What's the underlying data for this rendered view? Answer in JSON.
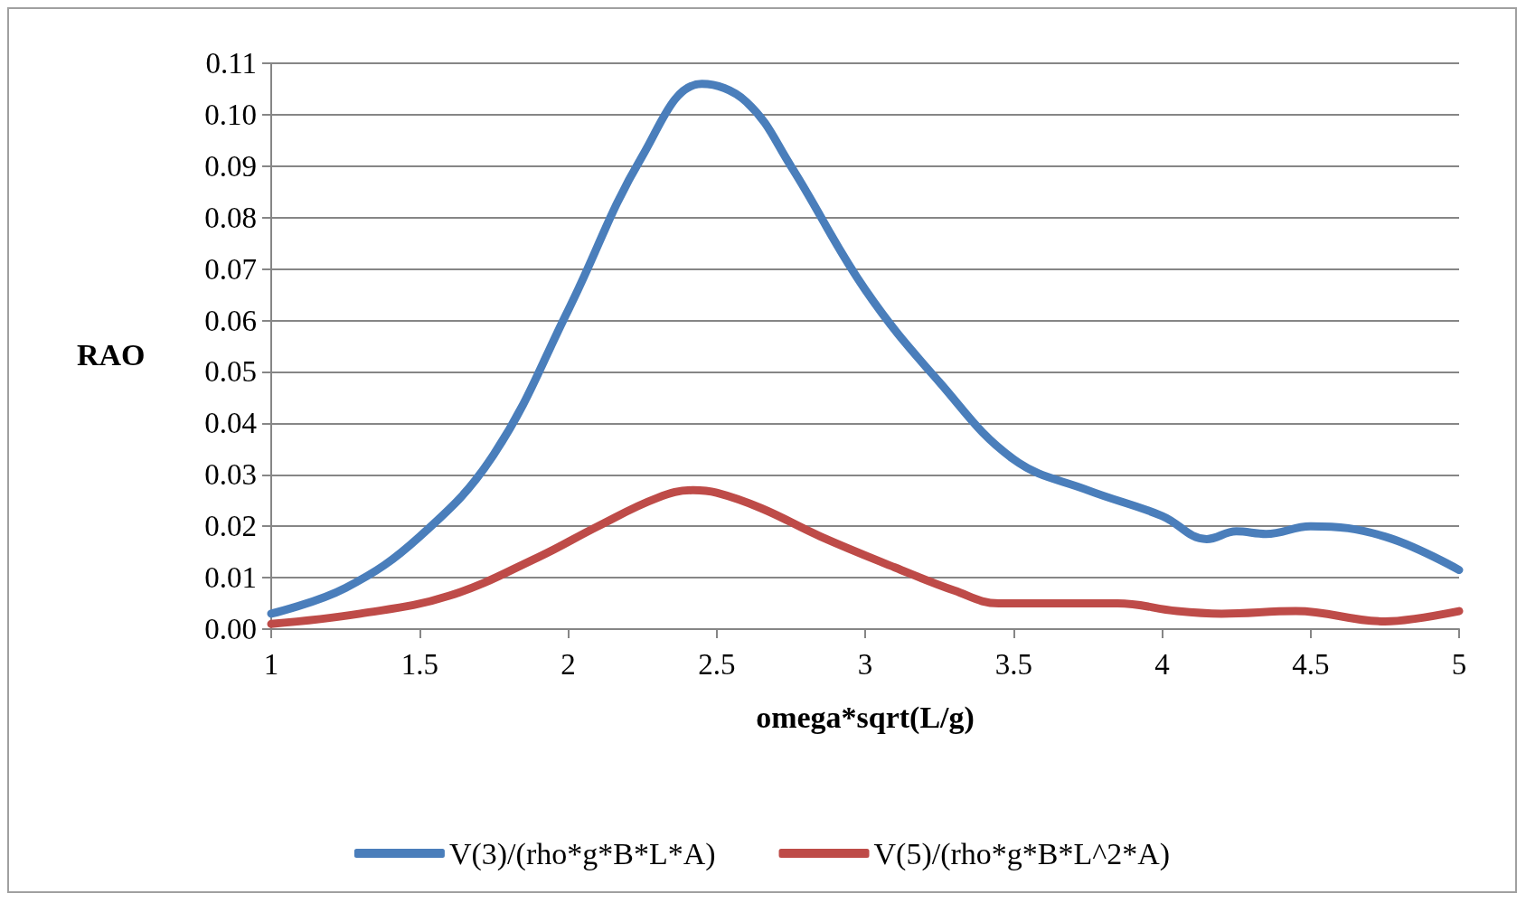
{
  "chart_data": {
    "type": "line",
    "xlabel": "omega*sqrt(L/g)",
    "ylabel": "RAO",
    "xlim": [
      1,
      5
    ],
    "xticks": [
      1,
      1.5,
      2,
      2.5,
      3,
      3.5,
      4,
      4.5,
      5
    ],
    "ylim": [
      0,
      0.11
    ],
    "yticks": [
      {
        "value": 0,
        "label": "0.00"
      },
      {
        "value": 0.01,
        "label": "0.01"
      },
      {
        "value": 0.02,
        "label": "0.02"
      },
      {
        "value": 0.03,
        "label": "0.03"
      },
      {
        "value": 0.04,
        "label": "0.04"
      },
      {
        "value": 0.05,
        "label": "0.05"
      },
      {
        "value": 0.06,
        "label": "0.06"
      },
      {
        "value": 0.07,
        "label": "0.07"
      },
      {
        "value": 0.08,
        "label": "0.08"
      },
      {
        "value": 0.09,
        "label": "0.09"
      },
      {
        "value": 0.1,
        "label": "0.10"
      },
      {
        "value": 0.11,
        "label": "0.11"
      }
    ],
    "grid": "y",
    "legend": "bottom",
    "marker": "none",
    "line_style": "solid",
    "series": [
      {
        "name": "V(3)/(rho*g*B*L*A)",
        "color": "#4a7ebb",
        "x": [
          1,
          1.25,
          1.5,
          1.75,
          2,
          2.25,
          2.45,
          2.6,
          2.75,
          3,
          3.25,
          3.5,
          3.75,
          4,
          4.15,
          4.25,
          4.35,
          4.5,
          4.75,
          5
        ],
        "values": [
          0.003,
          0.008,
          0.018,
          0.034,
          0.062,
          0.092,
          0.106,
          0.1025,
          0.09,
          0.066,
          0.048,
          0.033,
          0.027,
          0.022,
          0.0175,
          0.019,
          0.0185,
          0.02,
          0.018,
          0.0115
        ]
      },
      {
        "name": "V(5)/(rho*g*B*L^2*A)",
        "color": "#be4b48",
        "x": [
          1,
          1.3,
          1.6,
          1.9,
          2.1,
          2.3,
          2.42,
          2.5,
          2.65,
          2.85,
          3.1,
          3.3,
          3.45,
          3.85,
          4.05,
          4.2,
          4.45,
          4.75,
          4.85,
          5
        ],
        "values": [
          0.001,
          0.003,
          0.0065,
          0.014,
          0.02,
          0.0255,
          0.027,
          0.0265,
          0.0235,
          0.018,
          0.012,
          0.0075,
          0.005,
          0.005,
          0.0035,
          0.003,
          0.0035,
          0.0015,
          0.002,
          0.0035
        ]
      }
    ]
  }
}
